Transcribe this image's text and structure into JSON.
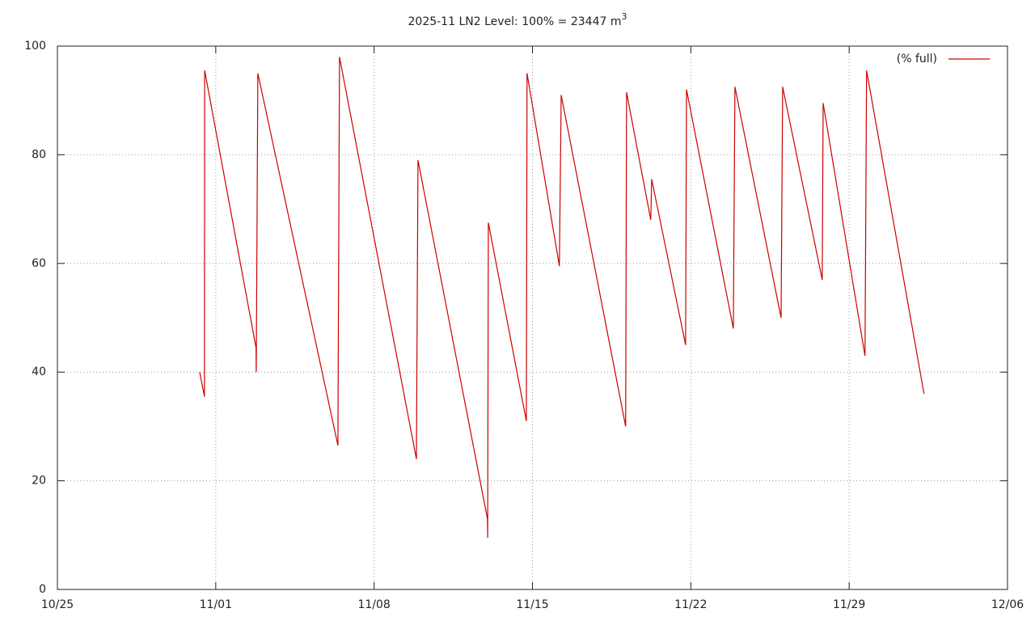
{
  "chart_data": {
    "type": "line",
    "title": "2025-11 LN2 Level: 100% = 23447 m",
    "title_superscript": "3",
    "xlim": [
      0,
      42
    ],
    "xticks": [
      {
        "value": 0,
        "label": "10/25"
      },
      {
        "value": 7,
        "label": "11/01"
      },
      {
        "value": 14,
        "label": "11/08"
      },
      {
        "value": 21,
        "label": "11/15"
      },
      {
        "value": 28,
        "label": "11/22"
      },
      {
        "value": 35,
        "label": "11/29"
      },
      {
        "value": 42,
        "label": "12/06"
      }
    ],
    "ylim": [
      0,
      100
    ],
    "yticks": [
      0,
      20,
      40,
      60,
      80,
      100
    ],
    "grid": true,
    "legend": "top-right",
    "x": [
      6.29,
      6.5,
      6.51,
      8.78,
      8.79,
      8.86,
      12.4,
      12.47,
      15.87,
      15.94,
      19.01,
      19.02,
      19.05,
      20.73,
      20.76,
      22.19,
      22.27,
      25.12,
      25.16,
      26.23,
      26.27,
      27.77,
      27.81,
      29.88,
      29.95,
      31.99,
      32.06,
      33.81,
      33.85,
      35.7,
      35.77,
      38.31
    ],
    "series": [
      {
        "name": "(% full)",
        "color": "#cc0000",
        "values": [
          40,
          35.5,
          95.5,
          44.5,
          40,
          95,
          26.5,
          98,
          24,
          79,
          13,
          9.5,
          67.5,
          31,
          95,
          59.5,
          91,
          30,
          91.5,
          68,
          75.5,
          45,
          92,
          48,
          92.5,
          50,
          92.5,
          57,
          89.5,
          43,
          95.5,
          36
        ]
      }
    ]
  }
}
